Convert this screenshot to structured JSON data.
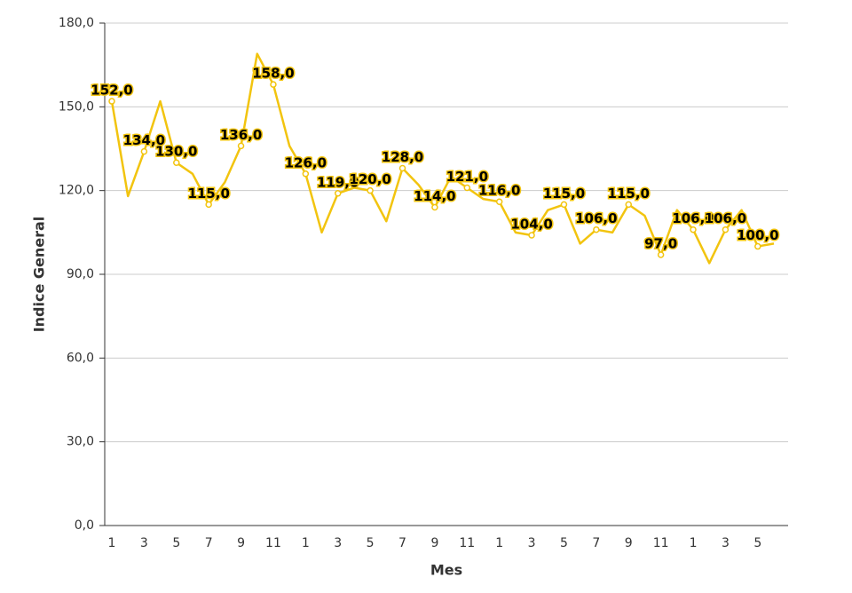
{
  "chart_data": {
    "type": "line",
    "x_label": "Mes",
    "y_label": "Indice General",
    "categories": [
      "1",
      null,
      "3",
      null,
      "5",
      null,
      "7",
      null,
      "9",
      null,
      "11",
      null,
      "1",
      null,
      "3",
      null,
      "5",
      null,
      "7",
      null,
      "9",
      null,
      "11",
      null,
      "1",
      null,
      "3",
      null,
      "5",
      null,
      "7",
      null,
      "9",
      null,
      "11",
      null,
      "1",
      null,
      "3",
      null,
      "5",
      null
    ],
    "series": [
      {
        "name": "Indice General",
        "color": "#f2c40f",
        "values": [
          152,
          118,
          134,
          152,
          130,
          126,
          115,
          123,
          136,
          169,
          158,
          136,
          126,
          105,
          119,
          121,
          120,
          109,
          128,
          122,
          114,
          125,
          121,
          117,
          116,
          105,
          104,
          113,
          115,
          101,
          106,
          105,
          115,
          111,
          97,
          113,
          106,
          94,
          106,
          113,
          100,
          101
        ],
        "value_labels": [
          "152,0",
          null,
          "134,0",
          null,
          "130,0",
          null,
          "115,0",
          null,
          "136,0",
          null,
          "158,0",
          null,
          "126,0",
          null,
          "119,0",
          null,
          "120,0",
          null,
          "128,0",
          null,
          "114,0",
          null,
          "121,0",
          null,
          "116,0",
          null,
          "104,0",
          null,
          "115,0",
          null,
          "106,0",
          null,
          "115,0",
          null,
          "97,0",
          null,
          "106,0",
          null,
          "106,0",
          null,
          "100,0",
          null
        ]
      }
    ],
    "ylim": [
      0,
      180
    ],
    "yticks": [
      {
        "value": 0,
        "label": "0,0"
      },
      {
        "value": 30,
        "label": "30,0"
      },
      {
        "value": 60,
        "label": "60,0"
      },
      {
        "value": 90,
        "label": "90,0"
      },
      {
        "value": 120,
        "label": "120,0"
      },
      {
        "value": 150,
        "label": "150,0"
      },
      {
        "value": 180,
        "label": "180,0"
      }
    ],
    "grid": true
  }
}
